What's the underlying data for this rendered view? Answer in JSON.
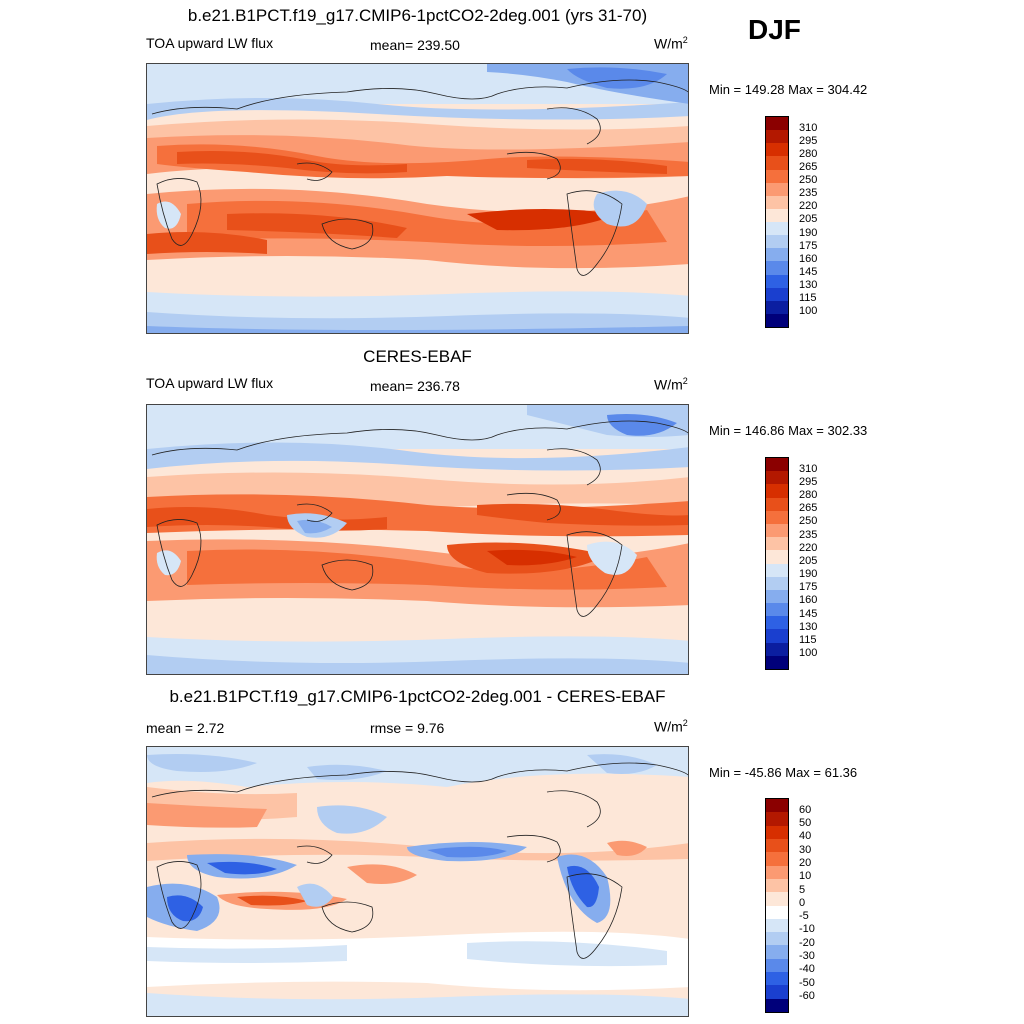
{
  "season": "DJF",
  "panels": [
    {
      "title": "b.e21.B1PCT.f19_g17.CMIP6-1pctCO2-2deg.001 (yrs 31-70)",
      "left_label": "TOA upward LW flux",
      "mid_label": "mean= 239.50",
      "units": "W/m",
      "units_sup": "2",
      "minmax": "Min = 149.28 Max = 304.42",
      "levels": [
        "310",
        "295",
        "280",
        "265",
        "250",
        "235",
        "220",
        "205",
        "190",
        "175",
        "160",
        "145",
        "130",
        "115",
        "100"
      ],
      "colors": [
        "#8b0000",
        "#b31800",
        "#d72f00",
        "#e8501a",
        "#f5703c",
        "#fb9a72",
        "#fdc3a5",
        "#fde7d8",
        "#d6e6f7",
        "#b2cdf2",
        "#86adee",
        "#5a89ea",
        "#2e61e4",
        "#1a3fcf",
        "#0b1ea0",
        "#00007a"
      ]
    },
    {
      "title": "CERES-EBAF",
      "left_label": "TOA upward LW flux",
      "mid_label": "mean= 236.78",
      "units": "W/m",
      "units_sup": "2",
      "minmax": "Min = 146.86 Max = 302.33",
      "levels": [
        "310",
        "295",
        "280",
        "265",
        "250",
        "235",
        "220",
        "205",
        "190",
        "175",
        "160",
        "145",
        "130",
        "115",
        "100"
      ],
      "colors": [
        "#8b0000",
        "#b31800",
        "#d72f00",
        "#e8501a",
        "#f5703c",
        "#fb9a72",
        "#fdc3a5",
        "#fde7d8",
        "#d6e6f7",
        "#b2cdf2",
        "#86adee",
        "#5a89ea",
        "#2e61e4",
        "#1a3fcf",
        "#0b1ea0",
        "#00007a"
      ]
    },
    {
      "title": "b.e21.B1PCT.f19_g17.CMIP6-1pctCO2-2deg.001 - CERES-EBAF",
      "left_label": "mean =   2.72",
      "mid_label": "rmse =   9.76",
      "units": "W/m",
      "units_sup": "2",
      "minmax": "Min = -45.86 Max =  61.36",
      "levels": [
        "60",
        "50",
        "40",
        "30",
        "20",
        "10",
        "5",
        "0",
        "-5",
        "-10",
        "-20",
        "-30",
        "-40",
        "-50",
        "-60"
      ],
      "colors": [
        "#8b0000",
        "#b31800",
        "#d72f00",
        "#e8501a",
        "#f5703c",
        "#fb9a72",
        "#fdc3a5",
        "#fde7d8",
        "#ffffff",
        "#d6e6f7",
        "#b2cdf2",
        "#86adee",
        "#5a89ea",
        "#2e61e4",
        "#1a3fcf",
        "#00007a"
      ]
    }
  ]
}
